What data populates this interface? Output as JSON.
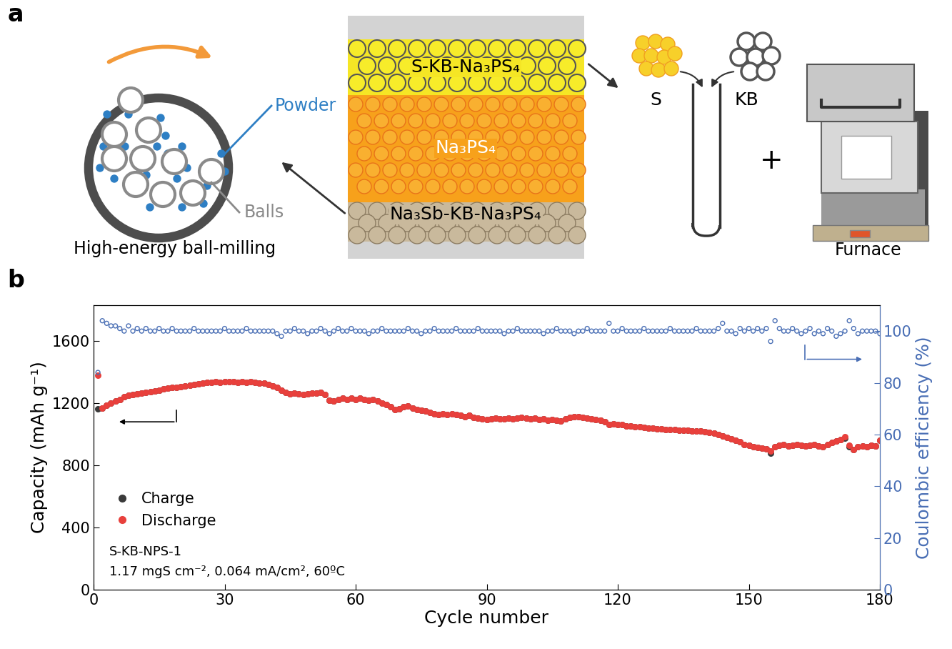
{
  "panel_labels": [
    "a",
    "b"
  ],
  "diagram": {
    "ball_mill": {
      "label": "High-energy ball-milling",
      "powder": "Powder",
      "balls": "Balls"
    },
    "layers": [
      "S-KB-Na₃PS₄",
      "Na₃PS₄",
      "Na₃Sb-KB-Na₃PS₄"
    ],
    "mixing": {
      "components": [
        "S",
        "KB"
      ],
      "plus": "+",
      "furnace": "Furnace"
    }
  },
  "chart_data": {
    "type": "scatter",
    "xlabel": "Cycle number",
    "ylabel": "Capacity (mAh g⁻¹)",
    "y2label": "Coulombic efficiency (%)",
    "annotations": [
      "S-KB-NPS-1",
      "1.17 mgS cm⁻², 0.064 mA/cm², 60ºC"
    ],
    "xlim": [
      0,
      180
    ],
    "xticks": [
      0,
      30,
      60,
      90,
      120,
      150,
      180
    ],
    "ylim": [
      0,
      1830
    ],
    "yticks": [
      0,
      400,
      800,
      1200,
      1600
    ],
    "y2lim": [
      0,
      110
    ],
    "y2ticks": [
      0,
      20,
      40,
      60,
      80,
      100
    ],
    "legend": "lower left",
    "x": [
      1,
      2,
      3,
      4,
      5,
      6,
      7,
      8,
      9,
      10,
      11,
      12,
      13,
      14,
      15,
      16,
      17,
      18,
      19,
      20,
      21,
      22,
      23,
      24,
      25,
      26,
      27,
      28,
      29,
      30,
      31,
      32,
      33,
      34,
      35,
      36,
      37,
      38,
      39,
      40,
      41,
      42,
      43,
      44,
      45,
      46,
      47,
      48,
      49,
      50,
      51,
      52,
      53,
      54,
      55,
      56,
      57,
      58,
      59,
      60,
      61,
      62,
      63,
      64,
      65,
      66,
      67,
      68,
      69,
      70,
      71,
      72,
      73,
      74,
      75,
      76,
      77,
      78,
      79,
      80,
      81,
      82,
      83,
      84,
      85,
      86,
      87,
      88,
      89,
      90,
      91,
      92,
      93,
      94,
      95,
      96,
      97,
      98,
      99,
      100,
      101,
      102,
      103,
      104,
      105,
      106,
      107,
      108,
      109,
      110,
      111,
      112,
      113,
      114,
      115,
      116,
      117,
      118,
      119,
      120,
      121,
      122,
      123,
      124,
      125,
      126,
      127,
      128,
      129,
      130,
      131,
      132,
      133,
      134,
      135,
      136,
      137,
      138,
      139,
      140,
      141,
      142,
      143,
      144,
      145,
      146,
      147,
      148,
      149,
      150,
      151,
      152,
      153,
      154,
      155,
      156,
      157,
      158,
      159,
      160,
      161,
      162,
      163,
      164,
      165,
      166,
      167,
      168,
      169,
      170,
      171,
      172,
      173,
      174,
      175,
      176,
      177,
      178,
      179,
      180
    ],
    "series": [
      {
        "name": "Charge",
        "color": "#3a3a3a",
        "marker": "circle",
        "axis": "y",
        "values": [
          1165,
          1170,
          1185,
          1200,
          1215,
          1225,
          1240,
          1250,
          1255,
          1260,
          1265,
          1270,
          1275,
          1280,
          1285,
          1290,
          1295,
          1300,
          1300,
          1305,
          1310,
          1315,
          1320,
          1325,
          1330,
          1335,
          1335,
          1340,
          1335,
          1340,
          1340,
          1340,
          1335,
          1340,
          1335,
          1340,
          1335,
          1330,
          1330,
          1320,
          1310,
          1300,
          1285,
          1270,
          1260,
          1265,
          1260,
          1255,
          1260,
          1265,
          1265,
          1270,
          1255,
          1220,
          1215,
          1225,
          1230,
          1225,
          1230,
          1225,
          1230,
          1225,
          1220,
          1225,
          1215,
          1200,
          1190,
          1175,
          1160,
          1165,
          1175,
          1180,
          1170,
          1160,
          1155,
          1150,
          1140,
          1130,
          1125,
          1130,
          1125,
          1130,
          1125,
          1120,
          1115,
          1120,
          1110,
          1105,
          1100,
          1095,
          1100,
          1105,
          1100,
          1100,
          1105,
          1100,
          1105,
          1110,
          1105,
          1100,
          1105,
          1095,
          1100,
          1090,
          1095,
          1090,
          1085,
          1100,
          1110,
          1115,
          1115,
          1110,
          1105,
          1100,
          1095,
          1090,
          1080,
          1060,
          1065,
          1060,
          1060,
          1055,
          1055,
          1050,
          1050,
          1045,
          1040,
          1040,
          1035,
          1035,
          1030,
          1030,
          1030,
          1025,
          1025,
          1025,
          1020,
          1020,
          1020,
          1015,
          1010,
          1005,
          1000,
          990,
          980,
          970,
          960,
          950,
          935,
          930,
          920,
          915,
          910,
          905,
          880,
          920,
          930,
          935,
          925,
          930,
          935,
          930,
          925,
          930,
          935,
          925,
          920,
          935,
          945,
          955,
          965,
          975,
          920,
          900,
          920,
          925,
          920,
          930,
          925,
          960
        ]
      },
      {
        "name": "Discharge",
        "color": "#e8403c",
        "marker": "circle",
        "axis": "y",
        "values": [
          1380,
          1170,
          1185,
          1200,
          1215,
          1225,
          1240,
          1250,
          1255,
          1260,
          1265,
          1270,
          1275,
          1280,
          1285,
          1290,
          1295,
          1300,
          1300,
          1305,
          1310,
          1315,
          1320,
          1325,
          1330,
          1335,
          1335,
          1340,
          1335,
          1340,
          1340,
          1340,
          1335,
          1340,
          1335,
          1340,
          1335,
          1330,
          1330,
          1320,
          1310,
          1300,
          1285,
          1270,
          1260,
          1265,
          1260,
          1255,
          1260,
          1265,
          1265,
          1270,
          1255,
          1220,
          1215,
          1225,
          1230,
          1225,
          1230,
          1225,
          1230,
          1225,
          1220,
          1225,
          1215,
          1200,
          1190,
          1175,
          1160,
          1165,
          1175,
          1180,
          1170,
          1160,
          1155,
          1150,
          1140,
          1130,
          1125,
          1130,
          1125,
          1130,
          1125,
          1120,
          1115,
          1120,
          1110,
          1105,
          1100,
          1095,
          1100,
          1105,
          1100,
          1100,
          1105,
          1100,
          1105,
          1110,
          1105,
          1100,
          1105,
          1095,
          1100,
          1090,
          1095,
          1090,
          1085,
          1100,
          1110,
          1115,
          1115,
          1110,
          1105,
          1100,
          1095,
          1090,
          1080,
          1060,
          1065,
          1060,
          1060,
          1055,
          1055,
          1050,
          1050,
          1045,
          1040,
          1040,
          1035,
          1035,
          1030,
          1030,
          1030,
          1025,
          1025,
          1025,
          1020,
          1020,
          1020,
          1015,
          1010,
          1005,
          1000,
          990,
          980,
          970,
          960,
          950,
          935,
          930,
          920,
          915,
          910,
          905,
          890,
          920,
          930,
          935,
          925,
          930,
          935,
          930,
          925,
          930,
          935,
          925,
          920,
          935,
          945,
          955,
          965,
          985,
          930,
          900,
          920,
          925,
          920,
          930,
          925,
          960
        ]
      },
      {
        "name": "Coulombic efficiency",
        "color": "#4a6fb5",
        "marker": "open_circle",
        "axis": "y2",
        "values": [
          84,
          104,
          103,
          102,
          102,
          101,
          100,
          102,
          100,
          101,
          100,
          101,
          100,
          100,
          101,
          100,
          100,
          101,
          100,
          100,
          100,
          100,
          101,
          100,
          100,
          100,
          100,
          100,
          100,
          101,
          100,
          100,
          100,
          100,
          101,
          100,
          100,
          100,
          100,
          100,
          100,
          99,
          98,
          100,
          100,
          101,
          100,
          100,
          99,
          100,
          100,
          101,
          100,
          99,
          100,
          101,
          100,
          100,
          101,
          100,
          100,
          100,
          99,
          100,
          100,
          101,
          100,
          100,
          100,
          100,
          100,
          101,
          100,
          100,
          99,
          100,
          100,
          101,
          100,
          100,
          100,
          100,
          101,
          100,
          100,
          100,
          100,
          101,
          100,
          100,
          100,
          100,
          100,
          99,
          100,
          100,
          101,
          100,
          100,
          100,
          100,
          100,
          99,
          100,
          100,
          101,
          100,
          100,
          100,
          99,
          100,
          100,
          101,
          100,
          100,
          100,
          100,
          103,
          100,
          100,
          101,
          100,
          100,
          100,
          100,
          101,
          100,
          100,
          100,
          100,
          100,
          101,
          100,
          100,
          100,
          100,
          100,
          101,
          100,
          100,
          100,
          100,
          101,
          103,
          100,
          100,
          99,
          101,
          100,
          101,
          100,
          101,
          100,
          101,
          96,
          104,
          101,
          100,
          100,
          101,
          100,
          99,
          100,
          101,
          99,
          100,
          99,
          101,
          100,
          98,
          99,
          100,
          104,
          101,
          99,
          100,
          100,
          100,
          100,
          99
        ]
      }
    ]
  }
}
